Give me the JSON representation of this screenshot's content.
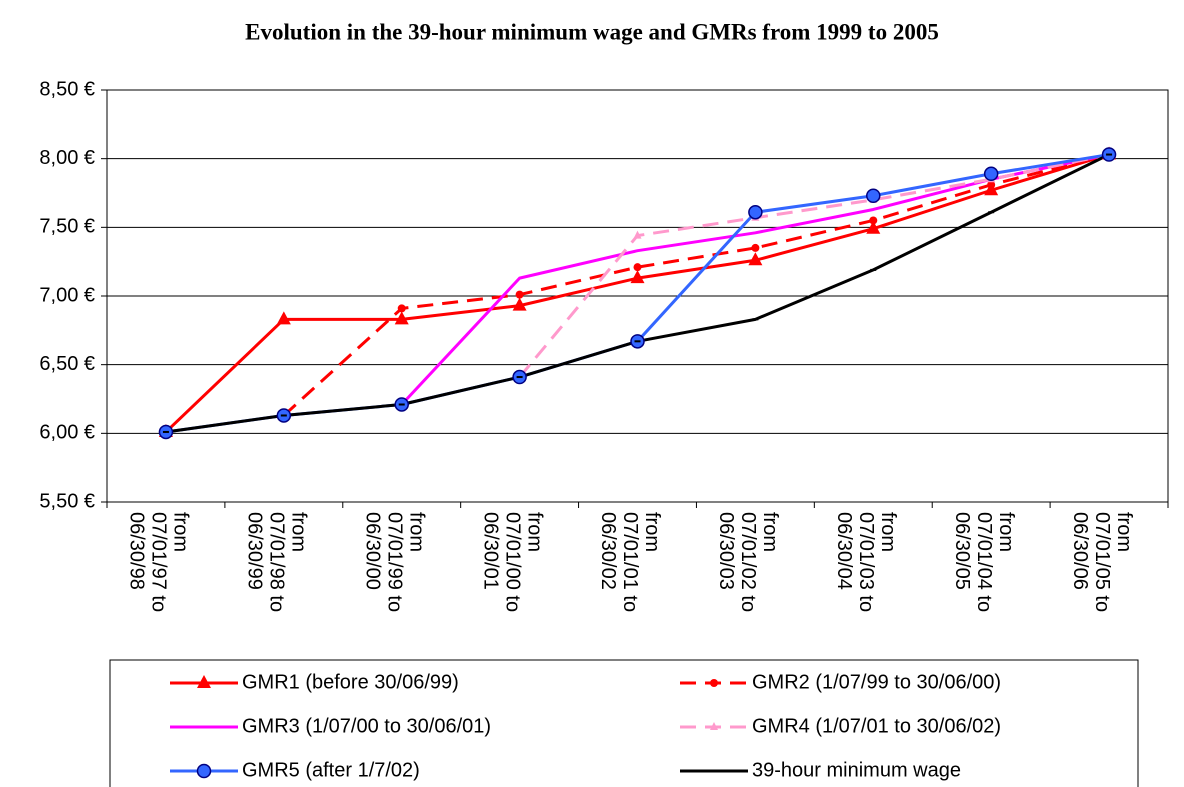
{
  "chart_data": {
    "type": "line",
    "title": "Evolution in the 39-hour minimum wage and GMRs from 1999 to 2005",
    "categories": [
      [
        "from",
        "07/01/97 to",
        "06/30/98"
      ],
      [
        "from",
        "07/01/98 to",
        "06/30/99"
      ],
      [
        "from",
        "07/01/99 to",
        "06/30/00"
      ],
      [
        "from",
        "07/01/00 to",
        "06/30/01"
      ],
      [
        "from",
        "07/01/01 to",
        "06/30/02"
      ],
      [
        "from",
        "07/01/02 to",
        "06/30/03"
      ],
      [
        "from",
        "07/01/03 to",
        "06/30/04"
      ],
      [
        "from",
        "07/01/04 to",
        "06/30/05"
      ],
      [
        "from",
        "07/01/05 to",
        "06/30/06"
      ]
    ],
    "ylim": [
      5.5,
      8.5
    ],
    "yticks": [
      {
        "value": 5.5,
        "label": "5,50 €"
      },
      {
        "value": 6.0,
        "label": "6,00 €"
      },
      {
        "value": 6.5,
        "label": "6,50 €"
      },
      {
        "value": 7.0,
        "label": "7,00 €"
      },
      {
        "value": 7.5,
        "label": "7,50 €"
      },
      {
        "value": 8.0,
        "label": "8,00 €"
      },
      {
        "value": 8.5,
        "label": "8,50 €"
      }
    ],
    "grid": true,
    "legend": "bottom",
    "series": [
      {
        "name": "GMR1 (before 30/06/99)",
        "color": "#ff0000",
        "dash": false,
        "marker": "triangle",
        "values": [
          6.01,
          6.83,
          6.83,
          6.93,
          7.13,
          7.26,
          7.49,
          7.77,
          8.03
        ]
      },
      {
        "name": "GMR2 (1/07/99 to 30/06/00)",
        "color": "#ff0000",
        "dash": true,
        "marker": "dot",
        "values": [
          null,
          6.13,
          6.91,
          7.01,
          7.21,
          7.35,
          7.55,
          7.81,
          8.03
        ]
      },
      {
        "name": "GMR3 (1/07/00 to 30/06/01)",
        "color": "#ff00ff",
        "dash": false,
        "marker": "none",
        "values": [
          null,
          null,
          6.21,
          7.13,
          7.33,
          7.46,
          7.63,
          7.85,
          8.03
        ]
      },
      {
        "name": "GMR4 (1/07/01 to 30/06/02)",
        "color": "#ff99cc",
        "dash": true,
        "marker": "small-triangle",
        "values": [
          null,
          null,
          null,
          6.41,
          7.44,
          7.57,
          7.7,
          7.85,
          8.03
        ]
      },
      {
        "name": "GMR5 (after 1/7/02)",
        "color": "#3366ff",
        "dash": false,
        "marker": "circle",
        "values": [
          6.01,
          6.13,
          6.21,
          6.41,
          6.67,
          7.61,
          7.73,
          7.89,
          8.03
        ]
      },
      {
        "name": "39-hour minimum wage",
        "color": "#000000",
        "dash": false,
        "marker": "tick",
        "values": [
          6.01,
          6.13,
          6.21,
          6.41,
          6.67,
          6.83,
          7.19,
          7.61,
          8.03
        ]
      }
    ]
  }
}
